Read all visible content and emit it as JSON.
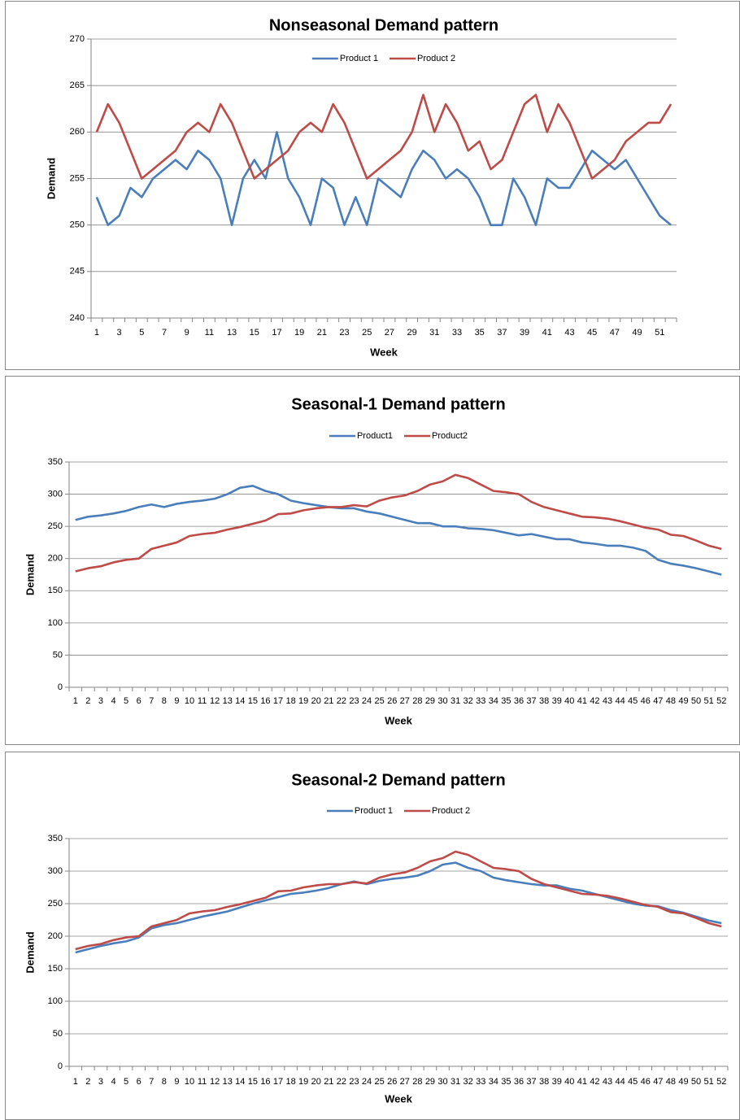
{
  "chart_data": [
    {
      "type": "line",
      "title": "Nonseasonal Demand pattern",
      "x_label": "Week",
      "y_label": "Demand",
      "categories": [
        1,
        null,
        3,
        null,
        5,
        null,
        7,
        null,
        9,
        null,
        11,
        null,
        13,
        null,
        15,
        null,
        17,
        null,
        19,
        null,
        21,
        null,
        23,
        null,
        25,
        null,
        27,
        null,
        29,
        null,
        31,
        null,
        33,
        null,
        35,
        null,
        37,
        null,
        39,
        null,
        41,
        null,
        43,
        null,
        45,
        null,
        47,
        null,
        49,
        null,
        51,
        null
      ],
      "series": [
        {
          "name": "Product 1",
          "color": "#4a7ebb",
          "values": [
            253,
            250,
            251,
            254,
            253,
            255,
            256,
            257,
            256,
            258,
            257,
            255,
            250,
            255,
            257,
            255,
            260,
            255,
            253,
            250,
            255,
            254,
            250,
            253,
            250,
            255,
            254,
            253,
            256,
            258,
            257,
            255,
            256,
            255,
            253,
            250,
            250,
            255,
            253,
            250,
            255,
            254,
            254,
            256,
            258,
            257,
            256,
            257,
            255,
            253,
            251,
            250
          ]
        },
        {
          "name": "Product 2",
          "color": "#be4b48",
          "values": [
            260,
            263,
            261,
            258,
            255,
            256,
            257,
            258,
            260,
            261,
            260,
            263,
            261,
            258,
            255,
            256,
            257,
            258,
            260,
            261,
            260,
            263,
            261,
            258,
            255,
            256,
            257,
            258,
            260,
            264,
            260,
            263,
            261,
            258,
            259,
            256,
            257,
            260,
            263,
            264,
            260,
            263,
            261,
            258,
            255,
            256,
            257,
            259,
            260,
            261,
            261,
            263
          ]
        }
      ],
      "ylim": [
        240,
        270
      ],
      "yticks": [
        240,
        245,
        250,
        255,
        260,
        265,
        270
      ],
      "grid": true
    },
    {
      "type": "line",
      "title": "Seasonal-1 Demand pattern",
      "x_label": "Week",
      "y_label": "Demand",
      "categories": [
        1,
        2,
        3,
        4,
        5,
        6,
        7,
        8,
        9,
        10,
        11,
        12,
        13,
        14,
        15,
        16,
        17,
        18,
        19,
        20,
        21,
        22,
        23,
        24,
        25,
        26,
        27,
        28,
        29,
        30,
        31,
        32,
        33,
        34,
        35,
        36,
        37,
        38,
        39,
        40,
        41,
        42,
        43,
        44,
        45,
        46,
        47,
        48,
        49,
        50,
        51,
        52
      ],
      "series": [
        {
          "name": "Product1",
          "color": "#4a7ebb",
          "values": [
            260,
            265,
            267,
            270,
            274,
            280,
            284,
            280,
            285,
            288,
            290,
            293,
            300,
            310,
            313,
            305,
            300,
            290,
            286,
            283,
            280,
            278,
            278,
            273,
            270,
            265,
            260,
            255,
            255,
            250,
            250,
            247,
            246,
            244,
            240,
            236,
            238,
            234,
            230,
            230,
            225,
            223,
            220,
            220,
            217,
            212,
            198,
            192,
            189,
            185,
            180,
            175
          ]
        },
        {
          "name": "Product2",
          "color": "#be4b48",
          "values": [
            180,
            185,
            188,
            194,
            198,
            200,
            215,
            220,
            225,
            235,
            238,
            240,
            245,
            249,
            254,
            259,
            269,
            270,
            275,
            278,
            280,
            280,
            283,
            281,
            290,
            295,
            298,
            305,
            315,
            320,
            330,
            325,
            315,
            305,
            303,
            300,
            288,
            280,
            275,
            270,
            265,
            264,
            262,
            258,
            253,
            248,
            245,
            237,
            235,
            228,
            220,
            215
          ]
        }
      ],
      "ylim": [
        0,
        350
      ],
      "yticks": [
        0,
        50,
        100,
        150,
        200,
        250,
        300,
        350
      ],
      "grid": true
    },
    {
      "type": "line",
      "title": "Seasonal-2 Demand pattern",
      "x_label": "Week",
      "y_label": "Demand",
      "categories": [
        1,
        2,
        3,
        4,
        5,
        6,
        7,
        8,
        9,
        10,
        11,
        12,
        13,
        14,
        15,
        16,
        17,
        18,
        19,
        20,
        21,
        22,
        23,
        24,
        25,
        26,
        27,
        28,
        29,
        30,
        31,
        32,
        33,
        34,
        35,
        36,
        37,
        38,
        39,
        40,
        41,
        42,
        43,
        44,
        45,
        46,
        47,
        48,
        49,
        50,
        51,
        52
      ],
      "series": [
        {
          "name": "Product 1",
          "color": "#4a7ebb",
          "values": [
            175,
            180,
            185,
            189,
            192,
            198,
            212,
            217,
            220,
            225,
            230,
            234,
            238,
            244,
            250,
            255,
            260,
            265,
            267,
            270,
            274,
            280,
            284,
            280,
            285,
            288,
            290,
            293,
            300,
            310,
            313,
            305,
            300,
            290,
            286,
            283,
            280,
            278,
            278,
            273,
            270,
            265,
            260,
            255,
            250,
            247,
            246,
            240,
            236,
            230,
            224,
            220
          ]
        },
        {
          "name": "Product 2",
          "color": "#be4b48",
          "values": [
            180,
            185,
            188,
            194,
            198,
            200,
            215,
            220,
            225,
            235,
            238,
            240,
            245,
            249,
            254,
            259,
            269,
            270,
            275,
            278,
            280,
            280,
            283,
            281,
            290,
            295,
            298,
            305,
            315,
            320,
            330,
            325,
            315,
            305,
            303,
            300,
            288,
            280,
            275,
            270,
            265,
            264,
            262,
            258,
            253,
            248,
            245,
            237,
            235,
            228,
            220,
            215
          ]
        }
      ],
      "ylim": [
        0,
        350
      ],
      "yticks": [
        0,
        50,
        100,
        150,
        200,
        250,
        300,
        350
      ],
      "grid": true
    }
  ]
}
